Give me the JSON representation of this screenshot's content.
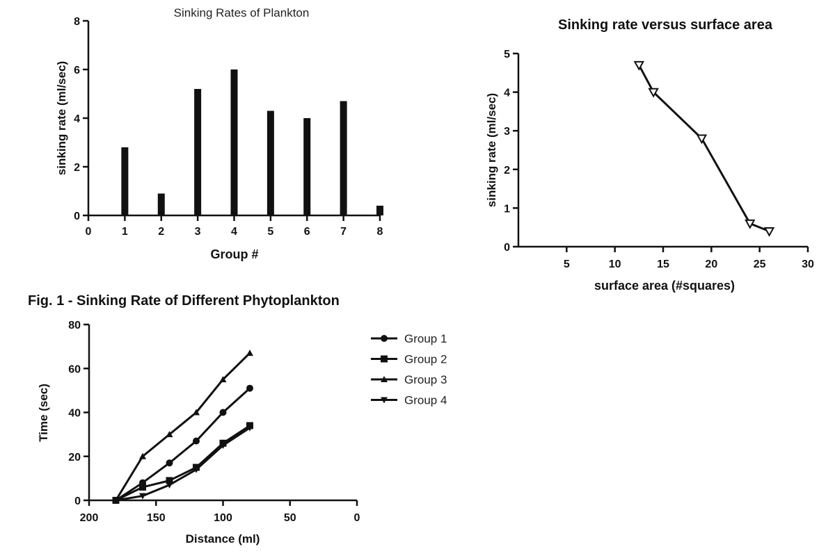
{
  "chart_data": [
    {
      "type": "bar",
      "title": "Sinking Rates of Plankton",
      "xlabel": "Group #",
      "ylabel": "sinking rate (ml/sec)",
      "categories": [
        "1",
        "2",
        "3",
        "4",
        "5",
        "6",
        "7",
        "8"
      ],
      "x": [
        1,
        2,
        3,
        4,
        5,
        6,
        7,
        8
      ],
      "values": [
        2.8,
        0.9,
        5.2,
        6.0,
        4.3,
        4.0,
        4.7,
        0.4
      ],
      "xlim": [
        0,
        8
      ],
      "ylim": [
        0,
        8
      ],
      "xticks": [
        "0",
        "1",
        "2",
        "3",
        "4",
        "5",
        "6",
        "7",
        "8"
      ],
      "yticks": [
        "0",
        "2",
        "4",
        "6",
        "8"
      ],
      "grid": false
    },
    {
      "type": "line",
      "title": "Sinking rate versus surface area",
      "xlabel": "surface area (#squares)",
      "ylabel": "sinking rate (ml/sec)",
      "marker": "triangle-down",
      "x": [
        12.5,
        14,
        19,
        24,
        26
      ],
      "y": [
        4.7,
        4.0,
        2.8,
        0.6,
        0.4
      ],
      "xlim": [
        0,
        30
      ],
      "ylim": [
        0,
        5
      ],
      "xticks": [
        "5",
        "10",
        "15",
        "20",
        "25",
        "30"
      ],
      "yticks": [
        "0",
        "1",
        "2",
        "3",
        "4",
        "5"
      ],
      "grid": false
    },
    {
      "type": "line",
      "title": "Fig. 1 -  Sinking Rate of Different Phytoplankton",
      "xlabel": "Distance (ml)",
      "ylabel": "Time (sec)",
      "x_reversed": true,
      "xlim": [
        200,
        0
      ],
      "ylim": [
        0,
        80
      ],
      "xticks": [
        "200",
        "150",
        "100",
        "50",
        "0"
      ],
      "yticks": [
        "0",
        "20",
        "40",
        "60",
        "80"
      ],
      "legend_position": "right",
      "grid": false,
      "series": [
        {
          "name": "Group 1",
          "marker": "circle",
          "x": [
            180,
            160,
            140,
            120,
            100,
            80
          ],
          "y": [
            0,
            8,
            17,
            27,
            40,
            51
          ]
        },
        {
          "name": "Group 2",
          "marker": "square",
          "x": [
            180,
            160,
            140,
            120,
            100,
            80
          ],
          "y": [
            0,
            6,
            9,
            15,
            26,
            34
          ]
        },
        {
          "name": "Group 3",
          "marker": "triangle-up",
          "x": [
            180,
            160,
            140,
            120,
            100,
            80
          ],
          "y": [
            0,
            20,
            30,
            40,
            55,
            67
          ]
        },
        {
          "name": "Group 4",
          "marker": "triangle-down",
          "x": [
            180,
            160,
            140,
            120,
            100,
            80
          ],
          "y": [
            0,
            2,
            7,
            14,
            25,
            33
          ]
        }
      ]
    }
  ]
}
